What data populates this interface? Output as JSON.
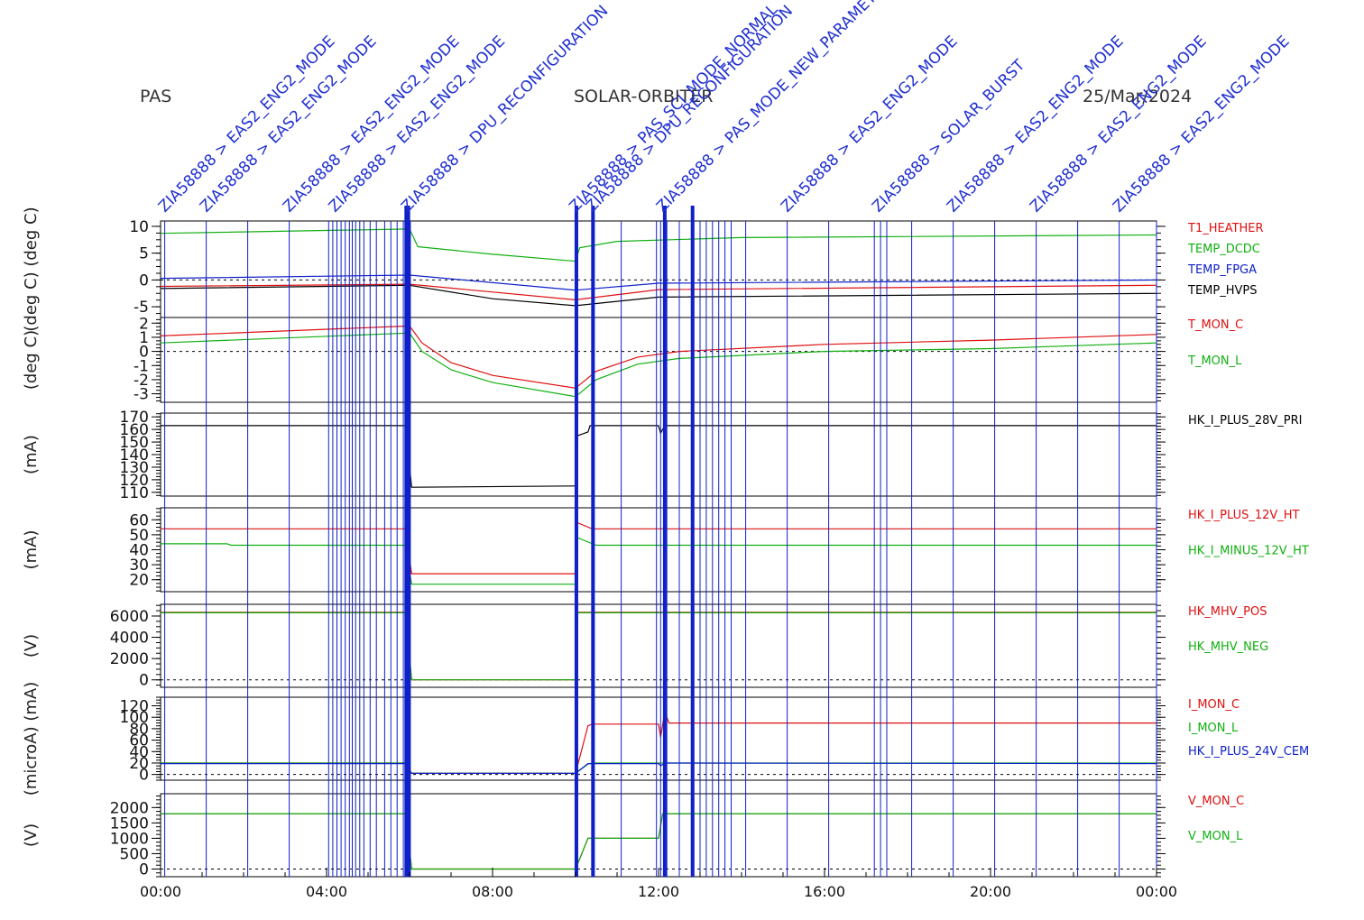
{
  "header": {
    "instrument": "PAS",
    "mission": "SOLAR-ORBITER",
    "date": "25/Mar/2024"
  },
  "colors": {
    "red": "#e01010",
    "green": "#10b010",
    "blue": "#1020c8",
    "black": "#000000",
    "event_line": "#1020c8",
    "event_text": "#2030d0"
  },
  "chart_data": {
    "type": "line",
    "x_axis": {
      "ticks": [
        "00:00",
        "04:00",
        "08:00",
        "12:00",
        "16:00",
        "20:00",
        "00:00"
      ],
      "range_hours": [
        0,
        24
      ],
      "minor_step_hours": 1
    },
    "events": {
      "labels": [
        {
          "t": 0.1,
          "text": "ZIA58888 > EAS2_ENG2_MODE"
        },
        {
          "t": 1.1,
          "text": "ZIA58888 > EAS2_ENG2_MODE"
        },
        {
          "t": 3.1,
          "text": "ZIA58888 > EAS2_ENG2_MODE"
        },
        {
          "t": 4.2,
          "text": "ZIA58888 > EAS2_ENG2_MODE"
        },
        {
          "t": 5.95,
          "text": "ZIA58888 > DPU_RECONFIGURATION"
        },
        {
          "t": 10.0,
          "text": "ZIA58888 > PAS_SCI_MODE_NORMAL"
        },
        {
          "t": 10.4,
          "text": "ZIA58888 > DPU_RECONFIGURATION"
        },
        {
          "t": 12.1,
          "text": "ZIA58888 > PAS_MODE_NEW_PARAMETERS"
        },
        {
          "t": 15.1,
          "text": "ZIA58888 > EAS2_ENG2_MODE"
        },
        {
          "t": 17.3,
          "text": "ZIA58888 > SOLAR_BURST"
        },
        {
          "t": 19.1,
          "text": "ZIA58888 > EAS2_ENG2_MODE"
        },
        {
          "t": 21.1,
          "text": "ZIA58888 > EAS2_ENG2_MODE"
        },
        {
          "t": 23.1,
          "text": "ZIA58888 > EAS2_ENG2_MODE"
        }
      ],
      "times": [
        0.1,
        1.1,
        2.1,
        3.1,
        4.05,
        4.15,
        4.25,
        4.35,
        4.45,
        4.55,
        4.62,
        4.7,
        4.8,
        4.9,
        5.05,
        5.2,
        5.4,
        5.55,
        5.7,
        5.85,
        5.9,
        5.93,
        5.96,
        5.99,
        6.02,
        10.0,
        10.05,
        10.4,
        10.45,
        11.1,
        11.95,
        12.05,
        12.12,
        12.2,
        12.5,
        12.8,
        12.85,
        13.0,
        13.15,
        13.3,
        13.45,
        13.6,
        13.75,
        14.1,
        15.1,
        16.1,
        17.2,
        17.35,
        17.5,
        18.1,
        19.1,
        20.1,
        21.1,
        22.1,
        23.1,
        24.0
      ],
      "thick": [
        5.92,
        5.97,
        10.02,
        10.42,
        12.15,
        12.82
      ]
    },
    "panels": [
      {
        "ylabel": "(deg C)  (deg C)",
        "ylim": [
          -7,
          11
        ],
        "ticks": [
          -5,
          0,
          5,
          10
        ],
        "zero_line": true,
        "series": [
          {
            "name": "T1_HEATHER",
            "color": "red",
            "points": [
              [
                0,
                -1.2
              ],
              [
                6.0,
                -0.8
              ],
              [
                10.0,
                -3.7
              ],
              [
                12.0,
                -1.8
              ],
              [
                24,
                -1.0
              ]
            ]
          },
          {
            "name": "TEMP_DCDC",
            "color": "green",
            "points": [
              [
                0,
                8.7
              ],
              [
                6.0,
                9.5
              ],
              [
                6.2,
                6.2
              ],
              [
                8,
                4.8
              ],
              [
                10.0,
                3.5
              ],
              [
                10.1,
                6.0
              ],
              [
                11,
                7.2
              ],
              [
                14,
                7.9
              ],
              [
                24,
                8.4
              ]
            ]
          },
          {
            "name": "TEMP_FPGA",
            "color": "blue",
            "points": [
              [
                0,
                0.3
              ],
              [
                6.0,
                0.9
              ],
              [
                10.0,
                -1.9
              ],
              [
                12.0,
                -0.6
              ],
              [
                24,
                0.0
              ]
            ]
          },
          {
            "name": "TEMP_HVPS",
            "color": "black",
            "points": [
              [
                0,
                -1.6
              ],
              [
                6.0,
                -1.0
              ],
              [
                8,
                -3.5
              ],
              [
                10.0,
                -4.8
              ],
              [
                12.0,
                -3.2
              ],
              [
                24,
                -2.5
              ]
            ]
          }
        ]
      },
      {
        "ylabel": "(deg C)",
        "ylim": [
          -3.6,
          2.4
        ],
        "ticks": [
          -3,
          -2,
          -1,
          0,
          1,
          2
        ],
        "zero_line": true,
        "series": [
          {
            "name": "T_MON_C",
            "color": "red",
            "points": [
              [
                0,
                1.1
              ],
              [
                6.0,
                1.8
              ],
              [
                6.3,
                0.6
              ],
              [
                7,
                -0.8
              ],
              [
                8,
                -1.7
              ],
              [
                10.0,
                -2.6
              ],
              [
                10.5,
                -1.4
              ],
              [
                11.5,
                -0.4
              ],
              [
                12.5,
                0.0
              ],
              [
                16,
                0.5
              ],
              [
                20,
                0.8
              ],
              [
                24,
                1.2
              ]
            ]
          },
          {
            "name": "T_MON_L",
            "color": "green",
            "points": [
              [
                0,
                0.6
              ],
              [
                6.0,
                1.3
              ],
              [
                6.3,
                0.0
              ],
              [
                7,
                -1.3
              ],
              [
                8,
                -2.2
              ],
              [
                10.0,
                -3.2
              ],
              [
                10.5,
                -2.0
              ],
              [
                11.5,
                -0.9
              ],
              [
                12.5,
                -0.5
              ],
              [
                16,
                0.0
              ],
              [
                20,
                0.2
              ],
              [
                24,
                0.6
              ]
            ]
          }
        ]
      },
      {
        "ylabel": "(mA)",
        "ylim": [
          107,
          173
        ],
        "ticks": [
          110,
          120,
          130,
          140,
          150,
          160,
          170
        ],
        "zero_line": false,
        "series": [
          {
            "name": "HK_I_PLUS_28V_PRI",
            "color": "black",
            "points": [
              [
                0,
                163
              ],
              [
                5.9,
                163
              ],
              [
                6.05,
                114
              ],
              [
                10.0,
                115
              ],
              [
                10.05,
                155
              ],
              [
                10.3,
                158
              ],
              [
                10.35,
                163
              ],
              [
                12.0,
                163
              ],
              [
                12.05,
                157
              ],
              [
                12.15,
                163
              ],
              [
                24,
                163
              ]
            ]
          }
        ]
      },
      {
        "ylabel": "(mA)",
        "ylim": [
          12,
          68
        ],
        "ticks": [
          20,
          30,
          40,
          50,
          60
        ],
        "zero_line": false,
        "series": [
          {
            "name": "HK_I_PLUS_12V_HT",
            "color": "red",
            "points": [
              [
                0,
                54
              ],
              [
                5.9,
                54
              ],
              [
                6.05,
                24
              ],
              [
                10.0,
                24
              ],
              [
                10.05,
                58
              ],
              [
                10.4,
                54
              ],
              [
                24,
                54
              ]
            ]
          },
          {
            "name": "HK_I_MINUS_12V_HT",
            "color": "green",
            "points": [
              [
                0,
                44
              ],
              [
                1.6,
                44
              ],
              [
                1.7,
                43
              ],
              [
                5.9,
                43
              ],
              [
                6.05,
                17
              ],
              [
                10.0,
                17
              ],
              [
                10.05,
                48
              ],
              [
                10.5,
                43
              ],
              [
                24,
                43
              ]
            ]
          }
        ]
      },
      {
        "ylabel": "(V)",
        "ylim": [
          -700,
          7100
        ],
        "ticks": [
          0,
          2000,
          4000,
          6000
        ],
        "zero_line": true,
        "series": [
          {
            "name": "HK_MHV_POS",
            "color": "red",
            "points": [
              [
                0,
                6350
              ],
              [
                5.9,
                6350
              ],
              [
                6.05,
                0
              ],
              [
                10.0,
                0
              ],
              [
                10.05,
                6350
              ],
              [
                24,
                6350
              ]
            ]
          },
          {
            "name": "HK_MHV_NEG",
            "color": "green",
            "points": [
              [
                0,
                6300
              ],
              [
                5.9,
                6300
              ],
              [
                6.05,
                0
              ],
              [
                10.0,
                0
              ],
              [
                10.05,
                6300
              ],
              [
                24,
                6300
              ]
            ]
          }
        ]
      },
      {
        "ylabel": "(microA) (mA)",
        "ylim": [
          -10,
          135
        ],
        "ticks": [
          0,
          20,
          40,
          60,
          80,
          100,
          120
        ],
        "zero_line": true,
        "series": [
          {
            "name": "I_MON_C",
            "color": "red",
            "points": [
              [
                0,
                20
              ],
              [
                5.9,
                20
              ],
              [
                6.05,
                2
              ],
              [
                10.0,
                2
              ],
              [
                10.3,
                85
              ],
              [
                10.4,
                88
              ],
              [
                12.0,
                88
              ],
              [
                12.05,
                65
              ],
              [
                12.15,
                110
              ],
              [
                12.25,
                90
              ],
              [
                24,
                90
              ]
            ]
          },
          {
            "name": "I_MON_L",
            "color": "green",
            "points": [
              [
                0,
                20
              ],
              [
                5.9,
                20
              ],
              [
                6.05,
                2
              ],
              [
                10.0,
                2
              ],
              [
                10.3,
                18
              ],
              [
                10.4,
                20
              ],
              [
                24,
                20
              ]
            ]
          },
          {
            "name": "HK_I_PLUS_24V_CEM",
            "color": "blue",
            "points": [
              [
                0,
                19
              ],
              [
                5.9,
                19
              ],
              [
                6.05,
                2
              ],
              [
                10.0,
                2
              ],
              [
                10.3,
                19
              ],
              [
                12.0,
                19
              ],
              [
                12.05,
                15
              ],
              [
                12.15,
                20
              ],
              [
                24,
                19
              ]
            ]
          }
        ]
      },
      {
        "ylabel": "(V)",
        "ylim": [
          -250,
          2450
        ],
        "ticks": [
          0,
          500,
          1000,
          1500,
          2000
        ],
        "zero_line": true,
        "series": [
          {
            "name": "V_MON_C",
            "color": "red",
            "points": [
              [
                0,
                1800
              ],
              [
                5.9,
                1800
              ],
              [
                6.05,
                0
              ],
              [
                10.0,
                0
              ],
              [
                10.3,
                1000
              ],
              [
                12.0,
                1000
              ],
              [
                12.1,
                1800
              ],
              [
                24,
                1800
              ]
            ]
          },
          {
            "name": "V_MON_L",
            "color": "green",
            "points": [
              [
                0,
                1800
              ],
              [
                5.9,
                1800
              ],
              [
                6.05,
                0
              ],
              [
                10.0,
                0
              ],
              [
                10.3,
                1000
              ],
              [
                12.0,
                1000
              ],
              [
                12.1,
                1800
              ],
              [
                24,
                1800
              ]
            ]
          }
        ]
      }
    ]
  }
}
